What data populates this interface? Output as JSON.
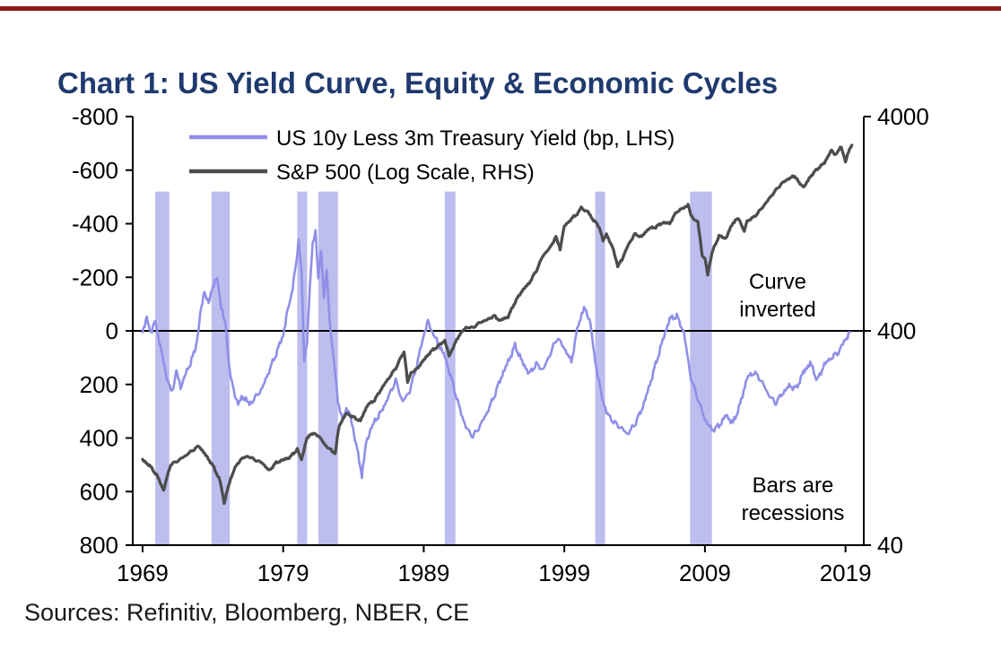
{
  "page": {
    "title": "Chart 1: US Yield Curve, Equity & Economic Cycles",
    "title_color": "#1F3A6E",
    "rule_color": "#8E1B1B",
    "sources": "Sources: Refinitiv, Bloomberg, NBER, CE"
  },
  "chart_data": {
    "type": "line",
    "title": "Chart 1: US Yield Curve, Equity & Economic Cycles",
    "x_axis": {
      "ticks": [
        1969,
        1979,
        1989,
        1999,
        2009,
        2019
      ],
      "range": [
        1968.3,
        2020.3
      ]
    },
    "left_axis": {
      "ticks": [
        -800,
        -600,
        -400,
        -200,
        0,
        200,
        400,
        600,
        800
      ],
      "range": [
        -800,
        800
      ],
      "inverted_display": true,
      "label": "US 10y Less 3m Treasury Yield (bp)"
    },
    "right_axis": {
      "ticks": [
        4000,
        400,
        40
      ],
      "range": [
        40,
        4000
      ],
      "scale": "log",
      "label": "S&P 500 (Log Scale)"
    },
    "legend": [
      {
        "label": "US 10y Less 3m Treasury Yield (bp, LHS)",
        "color": "#8F8FE8"
      },
      {
        "label": "S&P 500 (Log Scale, RHS)",
        "color": "#4D4D4D"
      }
    ],
    "annotations": [
      {
        "lines": [
          "Curve",
          "inverted"
        ]
      },
      {
        "lines": [
          "Bars are",
          "recessions"
        ]
      }
    ],
    "recession_note": "Bars are recessions",
    "recession_color": "#BDBDEE",
    "recession_bar_top": -520,
    "recessions": [
      [
        1969.9,
        1970.9
      ],
      [
        1973.9,
        1975.2
      ],
      [
        1980.0,
        1980.7
      ],
      [
        1981.5,
        1982.9
      ],
      [
        1990.5,
        1991.25
      ],
      [
        2001.2,
        2001.9
      ],
      [
        2007.95,
        2009.5
      ]
    ],
    "zero_line": 0,
    "series": [
      {
        "name": "US 10y Less 3m Treasury Yield (bp, LHS)",
        "axis": "left",
        "color": "#8F8FE8",
        "width": 2.6,
        "points": [
          [
            1969,
            0
          ],
          [
            1969.3,
            -45
          ],
          [
            1969.6,
            5
          ],
          [
            1969.9,
            -35
          ],
          [
            1970.2,
            40
          ],
          [
            1970.5,
            120
          ],
          [
            1970.8,
            190
          ],
          [
            1971.1,
            230
          ],
          [
            1971.4,
            150
          ],
          [
            1971.7,
            210
          ],
          [
            1972,
            170
          ],
          [
            1972.4,
            120
          ],
          [
            1972.8,
            60
          ],
          [
            1973.1,
            -60
          ],
          [
            1973.4,
            -150
          ],
          [
            1973.7,
            -100
          ],
          [
            1974,
            -170
          ],
          [
            1974.3,
            -195
          ],
          [
            1974.6,
            -90
          ],
          [
            1974.9,
            -20
          ],
          [
            1975.2,
            150
          ],
          [
            1975.5,
            230
          ],
          [
            1975.8,
            270
          ],
          [
            1976.2,
            245
          ],
          [
            1976.6,
            275
          ],
          [
            1977,
            250
          ],
          [
            1977.5,
            215
          ],
          [
            1978,
            150
          ],
          [
            1978.5,
            85
          ],
          [
            1979,
            15
          ],
          [
            1979.3,
            -70
          ],
          [
            1979.6,
            -140
          ],
          [
            1979.9,
            -240
          ],
          [
            1980.1,
            -345
          ],
          [
            1980.3,
            -230
          ],
          [
            1980.5,
            110
          ],
          [
            1980.7,
            40
          ],
          [
            1980.9,
            -160
          ],
          [
            1981.1,
            -320
          ],
          [
            1981.3,
            -372
          ],
          [
            1981.5,
            -190
          ],
          [
            1981.7,
            -305
          ],
          [
            1981.9,
            -130
          ],
          [
            1982.1,
            -225
          ],
          [
            1982.3,
            -50
          ],
          [
            1982.5,
            60
          ],
          [
            1982.7,
            160
          ],
          [
            1982.9,
            265
          ],
          [
            1983.2,
            330
          ],
          [
            1983.5,
            290
          ],
          [
            1983.8,
            320
          ],
          [
            1984.1,
            400
          ],
          [
            1984.4,
            480
          ],
          [
            1984.6,
            540
          ],
          [
            1984.9,
            420
          ],
          [
            1985.2,
            370
          ],
          [
            1985.6,
            330
          ],
          [
            1986,
            300
          ],
          [
            1986.5,
            245
          ],
          [
            1987,
            185
          ],
          [
            1987.5,
            265
          ],
          [
            1988,
            225
          ],
          [
            1988.5,
            130
          ],
          [
            1989,
            15
          ],
          [
            1989.3,
            -35
          ],
          [
            1989.7,
            15
          ],
          [
            1990,
            45
          ],
          [
            1990.5,
            95
          ],
          [
            1991,
            185
          ],
          [
            1991.5,
            280
          ],
          [
            1992,
            360
          ],
          [
            1992.5,
            395
          ],
          [
            1993,
            355
          ],
          [
            1993.5,
            305
          ],
          [
            1994,
            245
          ],
          [
            1994.5,
            175
          ],
          [
            1995,
            115
          ],
          [
            1995.5,
            55
          ],
          [
            1996,
            115
          ],
          [
            1996.5,
            160
          ],
          [
            1997,
            125
          ],
          [
            1997.5,
            145
          ],
          [
            1998,
            85
          ],
          [
            1998.5,
            25
          ],
          [
            1999,
            65
          ],
          [
            1999.5,
            115
          ],
          [
            2000,
            -25
          ],
          [
            2000.4,
            -85
          ],
          [
            2000.8,
            -45
          ],
          [
            2001.2,
            115
          ],
          [
            2001.6,
            230
          ],
          [
            2002,
            305
          ],
          [
            2002.5,
            340
          ],
          [
            2003,
            360
          ],
          [
            2003.5,
            385
          ],
          [
            2004,
            350
          ],
          [
            2004.5,
            295
          ],
          [
            2005,
            215
          ],
          [
            2005.5,
            125
          ],
          [
            2006,
            35
          ],
          [
            2006.5,
            -45
          ],
          [
            2007,
            -55
          ],
          [
            2007.5,
            5
          ],
          [
            2008,
            175
          ],
          [
            2008.5,
            255
          ],
          [
            2009,
            330
          ],
          [
            2009.5,
            370
          ],
          [
            2010,
            355
          ],
          [
            2010.5,
            315
          ],
          [
            2011,
            345
          ],
          [
            2011.5,
            275
          ],
          [
            2012,
            175
          ],
          [
            2012.5,
            155
          ],
          [
            2013,
            185
          ],
          [
            2013.5,
            235
          ],
          [
            2014,
            270
          ],
          [
            2014.5,
            235
          ],
          [
            2015,
            205
          ],
          [
            2015.5,
            215
          ],
          [
            2016,
            155
          ],
          [
            2016.5,
            120
          ],
          [
            2017,
            185
          ],
          [
            2017.5,
            125
          ],
          [
            2018,
            100
          ],
          [
            2018.5,
            80
          ],
          [
            2018.9,
            40
          ],
          [
            2019.3,
            5
          ]
        ]
      },
      {
        "name": "S&P 500 (Log Scale, RHS)",
        "axis": "right",
        "color": "#4D4D4D",
        "width": 3.3,
        "points": [
          [
            1969,
            100
          ],
          [
            1969.5,
            94
          ],
          [
            1970,
            85
          ],
          [
            1970.5,
            72
          ],
          [
            1971,
            95
          ],
          [
            1971.5,
            99
          ],
          [
            1972,
            104
          ],
          [
            1972.5,
            110
          ],
          [
            1973,
            116
          ],
          [
            1973.5,
            105
          ],
          [
            1974,
            94
          ],
          [
            1974.5,
            80
          ],
          [
            1974.8,
            63
          ],
          [
            1975.1,
            75
          ],
          [
            1975.5,
            90
          ],
          [
            1976,
            101
          ],
          [
            1976.5,
            104
          ],
          [
            1977,
            100
          ],
          [
            1977.5,
            97
          ],
          [
            1978,
            89
          ],
          [
            1978.5,
            97
          ],
          [
            1979,
            100
          ],
          [
            1979.5,
            103
          ],
          [
            1980,
            112
          ],
          [
            1980.3,
            100
          ],
          [
            1980.7,
            126
          ],
          [
            1981,
            133
          ],
          [
            1981.5,
            130
          ],
          [
            1982,
            117
          ],
          [
            1982.4,
            111
          ],
          [
            1982.7,
            107
          ],
          [
            1983,
            145
          ],
          [
            1983.5,
            165
          ],
          [
            1984,
            158
          ],
          [
            1984.5,
            152
          ],
          [
            1985,
            180
          ],
          [
            1985.5,
            190
          ],
          [
            1986,
            215
          ],
          [
            1986.5,
            240
          ],
          [
            1987,
            267
          ],
          [
            1987.6,
            320
          ],
          [
            1987.85,
            230
          ],
          [
            1988.1,
            255
          ],
          [
            1988.5,
            265
          ],
          [
            1989,
            292
          ],
          [
            1989.5,
            320
          ],
          [
            1990,
            339
          ],
          [
            1990.5,
            360
          ],
          [
            1990.8,
            305
          ],
          [
            1991.1,
            335
          ],
          [
            1991.5,
            380
          ],
          [
            1992,
            415
          ],
          [
            1992.5,
            414
          ],
          [
            1993,
            438
          ],
          [
            1993.5,
            450
          ],
          [
            1994,
            470
          ],
          [
            1994.4,
            447
          ],
          [
            1995,
            465
          ],
          [
            1995.5,
            545
          ],
          [
            1996,
            615
          ],
          [
            1996.5,
            668
          ],
          [
            1997,
            760
          ],
          [
            1997.5,
            900
          ],
          [
            1998,
            980
          ],
          [
            1998.4,
            1100
          ],
          [
            1998.7,
            960
          ],
          [
            1999,
            1230
          ],
          [
            1999.5,
            1330
          ],
          [
            2000,
            1425
          ],
          [
            2000.2,
            1500
          ],
          [
            2000.7,
            1430
          ],
          [
            2001,
            1335
          ],
          [
            2001.5,
            1215
          ],
          [
            2001.75,
            1050
          ],
          [
            2002,
            1130
          ],
          [
            2002.5,
            950
          ],
          [
            2002.8,
            800
          ],
          [
            2003.1,
            860
          ],
          [
            2003.5,
            990
          ],
          [
            2004,
            1130
          ],
          [
            2004.5,
            1100
          ],
          [
            2005,
            1200
          ],
          [
            2005.5,
            1220
          ],
          [
            2006,
            1280
          ],
          [
            2006.5,
            1270
          ],
          [
            2007,
            1440
          ],
          [
            2007.5,
            1500
          ],
          [
            2007.8,
            1550
          ],
          [
            2008,
            1380
          ],
          [
            2008.5,
            1280
          ],
          [
            2008.8,
            900
          ],
          [
            2009,
            870
          ],
          [
            2009.2,
            735
          ],
          [
            2009.5,
            920
          ],
          [
            2010,
            1110
          ],
          [
            2010.5,
            1080
          ],
          [
            2011,
            1280
          ],
          [
            2011.4,
            1340
          ],
          [
            2011.8,
            1160
          ],
          [
            2012,
            1300
          ],
          [
            2012.5,
            1360
          ],
          [
            2013,
            1480
          ],
          [
            2013.5,
            1630
          ],
          [
            2014,
            1800
          ],
          [
            2014.5,
            1960
          ],
          [
            2015,
            2060
          ],
          [
            2015.4,
            2110
          ],
          [
            2015.8,
            1920
          ],
          [
            2016.1,
            1890
          ],
          [
            2016.5,
            2100
          ],
          [
            2017,
            2280
          ],
          [
            2017.5,
            2430
          ],
          [
            2018,
            2780
          ],
          [
            2018.3,
            2650
          ],
          [
            2018.7,
            2900
          ],
          [
            2019,
            2450
          ],
          [
            2019.3,
            2850
          ],
          [
            2019.45,
            2940
          ]
        ]
      }
    ]
  }
}
